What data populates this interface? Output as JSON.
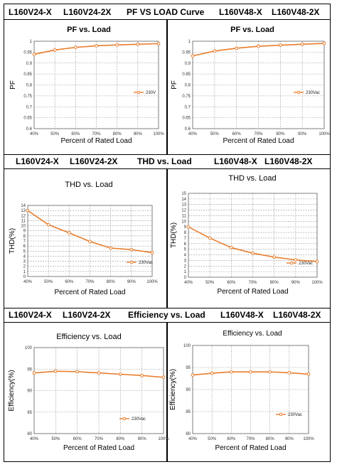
{
  "headers": [
    {
      "left_a": "L160V24-X",
      "left_b": "L160V24-2X",
      "center": "PF VS LOAD Curve",
      "right_a": "L160V48-X",
      "right_b": "L160V48-2X"
    },
    {
      "left_a": "L160V24-X",
      "left_b": "L160V24-2X",
      "center": "THD vs. Load",
      "right_a": "L160V48-X",
      "right_b": "L160V48-2X"
    },
    {
      "left_a": "L160V24-X",
      "left_b": "L160V24-2X",
      "center": "Efficiency vs. Load",
      "right_a": "L160V48-X",
      "right_b": "L160V48-2X"
    }
  ],
  "colors": {
    "series": "#e97d2c",
    "grid": "#9a9a9a"
  },
  "chart_data": [
    {
      "type": "line",
      "title": "PF vs. Load",
      "xlabel": "Percent of Rated Load",
      "ylabel": "PF",
      "categories": [
        "40%",
        "50%",
        "60%",
        "70%",
        "80%",
        "90%",
        "100%"
      ],
      "yticks": [
        "0.6",
        "0.65",
        "0.7",
        "0.75",
        "0.8",
        "0.85",
        "0.9",
        "0.95",
        "1"
      ],
      "ylim": [
        0.6,
        1.0
      ],
      "grid": true,
      "legend": "right",
      "series": [
        {
          "name": "230V",
          "values": [
            0.94,
            0.96,
            0.972,
            0.979,
            0.983,
            0.986,
            0.989
          ]
        }
      ]
    },
    {
      "type": "line",
      "title": "PF vs. Load",
      "xlabel": "Percent of Rated Load",
      "ylabel": "PF",
      "categories": [
        "40%",
        "50%",
        "60%",
        "70%",
        "80%",
        "90%",
        "100%"
      ],
      "yticks": [
        "0.6",
        "0.65",
        "0.7",
        "0.75",
        "0.8",
        "0.85",
        "0.9",
        "0.95",
        "1"
      ],
      "ylim": [
        0.6,
        1.0
      ],
      "grid": true,
      "legend": "right",
      "series": [
        {
          "name": "230Vac",
          "values": [
            0.933,
            0.955,
            0.968,
            0.977,
            0.982,
            0.986,
            0.99
          ]
        }
      ]
    },
    {
      "type": "line",
      "title": "THD vs. Load",
      "xlabel": "Percent of Rated Load",
      "ylabel": "THD(%)",
      "categories": [
        "40%",
        "50%",
        "60%",
        "70%",
        "80%",
        "90%",
        "100%"
      ],
      "yticks": [
        "0",
        "1",
        "2",
        "3",
        "4",
        "5",
        "6",
        "7",
        "8",
        "9",
        "10",
        "11",
        "12",
        "13",
        "14"
      ],
      "ylim": [
        0,
        14
      ],
      "grid": true,
      "legend": "bottom-right",
      "series": [
        {
          "name": "230Vac",
          "values": [
            13.0,
            10.2,
            8.6,
            6.9,
            5.6,
            5.3,
            4.7
          ]
        }
      ]
    },
    {
      "type": "line",
      "title": "THD vs. Load",
      "xlabel": "Percent of Rated Load",
      "ylabel": "THD(%)",
      "categories": [
        "40%",
        "50%",
        "60%",
        "70%",
        "80%",
        "90%",
        "100%"
      ],
      "yticks": [
        "0",
        "1",
        "2",
        "3",
        "4",
        "5",
        "6",
        "7",
        "8",
        "9",
        "10",
        "11",
        "12",
        "13",
        "14",
        "15"
      ],
      "ylim": [
        0,
        15
      ],
      "grid": true,
      "legend": "bottom-right",
      "series": [
        {
          "name": "230Vac",
          "values": [
            9.0,
            7.0,
            5.3,
            4.3,
            3.6,
            3.1,
            2.8
          ]
        }
      ]
    },
    {
      "type": "line",
      "title": "Efficiency vs. Load",
      "xlabel": "Percent of Rated Load",
      "ylabel": "Efficiency(%)",
      "categories": [
        "40%",
        "50%",
        "60%",
        "70%",
        "80%",
        "90%",
        "100%"
      ],
      "yticks": [
        "80",
        "85",
        "90",
        "95",
        "100"
      ],
      "ylim": [
        80,
        100
      ],
      "grid": true,
      "legend": "bottom-right",
      "series": [
        {
          "name": "230Vac",
          "values": [
            94.1,
            94.5,
            94.4,
            94.1,
            93.8,
            93.5,
            93.1
          ]
        }
      ]
    },
    {
      "type": "line",
      "title": "Efficiency vs. Load",
      "xlabel": "Percent of Rated Load",
      "ylabel": "Efficiency(%)",
      "categories": [
        "40%",
        "50%",
        "60%",
        "70%",
        "80%",
        "90%",
        "100%"
      ],
      "yticks": [
        "80",
        "85",
        "90",
        "95",
        "100"
      ],
      "ylim": [
        80,
        100
      ],
      "grid": true,
      "legend": "bottom-right",
      "series": [
        {
          "name": "230Vac",
          "values": [
            93.3,
            93.7,
            94.0,
            94.0,
            94.0,
            93.8,
            93.5
          ]
        }
      ]
    }
  ]
}
